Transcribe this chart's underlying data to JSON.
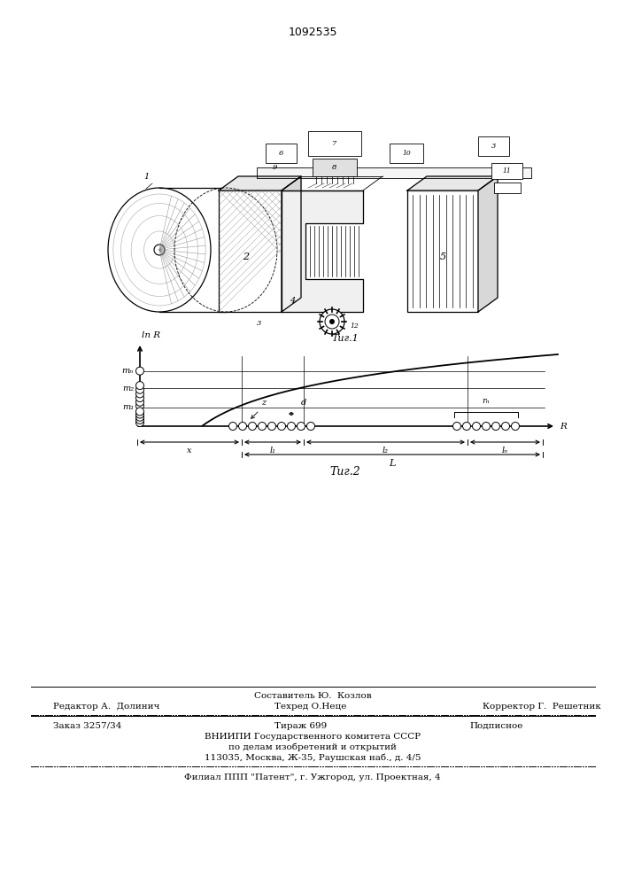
{
  "title_number": "1092535",
  "fig1_label": "Τиг.1",
  "fig2_label": "Τиг.2",
  "y_axis_label": "ln R",
  "x_axis_label": "R",
  "label_mn": "mₙ",
  "label_m2": "m₂",
  "label_m1": "m₁",
  "label_x": "x",
  "label_l1": "l₁",
  "label_l2": "l₂",
  "label_ln": "lₙ",
  "label_L": "L",
  "label_z": "z",
  "label_d": "d",
  "label_rn": "rₙ",
  "footer_composer": "Составитель Ю.  Козлов",
  "footer_editor": "Редактор А.  Долинич",
  "footer_tech": "Техред О.Неце",
  "footer_corrector": "Корректор Г.  Решетник",
  "footer_order": "Заказ 3257/34",
  "footer_tirazh": "Тираж 699",
  "footer_podp": "Подписное",
  "footer_vniip1": "ВНИИПИ Государственного комитета СССР",
  "footer_vniip2": "по делам изобретений и открытий",
  "footer_address": "113035, Москва, Ж-35, Раушская наб., д. 4/5",
  "footer_filial": "Филиал ППП \"Патент\", г. Ужгород, ул. Проектная, 4"
}
